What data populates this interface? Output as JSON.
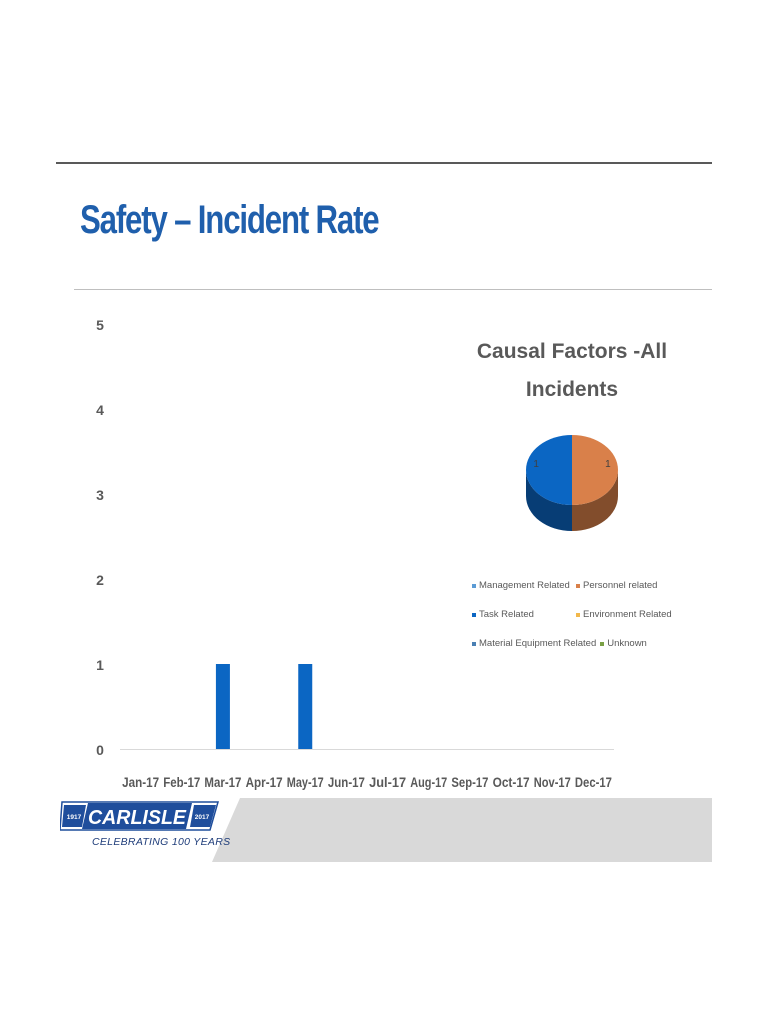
{
  "slide": {
    "title": "Safety – Incident Rate"
  },
  "chart_data": [
    {
      "type": "bar",
      "title": "",
      "categories": [
        "Jan-17",
        "Feb-17",
        "Mar-17",
        "Apr-17",
        "May-17",
        "Jun-17",
        "Jul-17",
        "Aug-17",
        "Sep-17",
        "Oct-17",
        "Nov-17",
        "Dec-17"
      ],
      "values": [
        0,
        0,
        1,
        0,
        1,
        0,
        0,
        0,
        0,
        0,
        0,
        0
      ],
      "ylim": [
        0,
        5
      ],
      "yticks": [
        "0",
        "1",
        "2",
        "3",
        "4",
        "5"
      ],
      "xlabel": "",
      "ylabel": "",
      "grid": false,
      "color": "#0b66c3"
    },
    {
      "type": "pie",
      "title": "Causal Factors -All Incidents",
      "title_lines": [
        "Causal Factors -All",
        "Incidents"
      ],
      "slices": [
        {
          "label": "Management Related",
          "value": 0,
          "color": "#5b9bd5"
        },
        {
          "label": "Personnel related",
          "value": 1,
          "color": "#d9804a",
          "data_label": "1"
        },
        {
          "label": "Task Related",
          "value": 1,
          "color": "#0b66c3",
          "data_label": "1"
        },
        {
          "label": "Environment Related",
          "value": 0,
          "color": "#f2b84b"
        },
        {
          "label": "Material Equipment Related",
          "value": 0,
          "color": "#4a7fb3"
        },
        {
          "label": "Unknown",
          "value": 0,
          "color": "#7aa045"
        }
      ],
      "legend": "bottom"
    }
  ],
  "footer": {
    "logo_text": "CARLISLE",
    "year_start": "1917",
    "year_end": "2017",
    "tagline": "CELEBRATING 100 YEARS",
    "brand_color": "#1f4e9c"
  }
}
